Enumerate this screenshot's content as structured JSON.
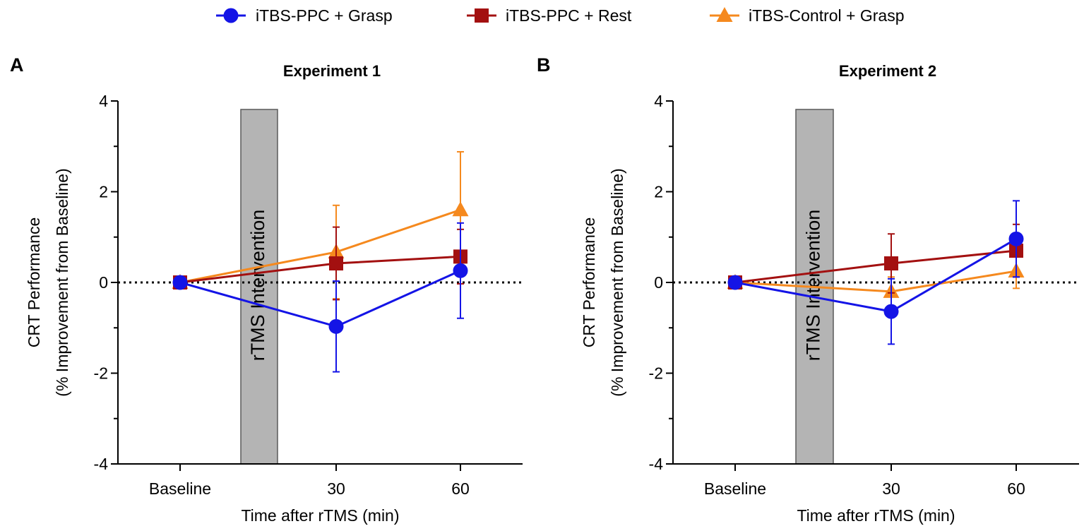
{
  "legend": [
    {
      "label": "iTBS-PPC + Grasp",
      "color": "#1414e6",
      "marker": "circle"
    },
    {
      "label": "iTBS-PPC + Rest",
      "color": "#a31010",
      "marker": "square"
    },
    {
      "label": "iTBS-Control + Grasp",
      "color": "#f5891e",
      "marker": "triangle"
    }
  ],
  "intervention_label": "rTMS Intervention",
  "chart_data": [
    {
      "type": "line",
      "panel": "A",
      "title": "Experiment 1",
      "xlabel": "Time after rTMS (min)",
      "ylabel_line1": "CRT Performance",
      "ylabel_line2": "(% Improvement from Baseline)",
      "ylim": [
        -4,
        4
      ],
      "yticks": [
        -4,
        -2,
        0,
        2,
        4
      ],
      "categories": [
        "Baseline",
        "30",
        "60"
      ],
      "x": [
        0,
        30,
        60
      ],
      "series": [
        {
          "name": "iTBS-PPC + Grasp",
          "values": [
            0,
            -0.97,
            0.26
          ],
          "errors": [
            0,
            1.0,
            1.05
          ]
        },
        {
          "name": "iTBS-PPC + Rest",
          "values": [
            0,
            0.42,
            0.57
          ],
          "errors": [
            0,
            0.8,
            0.6
          ]
        },
        {
          "name": "iTBS-Control + Grasp",
          "values": [
            0,
            0.67,
            1.6
          ],
          "errors": [
            0,
            1.03,
            1.28
          ]
        }
      ]
    },
    {
      "type": "line",
      "panel": "B",
      "title": "Experiment 2",
      "xlabel": "Time after rTMS (min)",
      "ylabel_line1": "CRT Performance",
      "ylabel_line2": "(% Improvement from Baseline)",
      "ylim": [
        -4,
        4
      ],
      "yticks": [
        -4,
        -2,
        0,
        2,
        4
      ],
      "categories": [
        "Baseline",
        "30",
        "60"
      ],
      "x": [
        0,
        30,
        60
      ],
      "series": [
        {
          "name": "iTBS-PPC + Grasp",
          "values": [
            0,
            -0.64,
            0.96
          ],
          "errors": [
            0,
            0.72,
            0.84
          ]
        },
        {
          "name": "iTBS-PPC + Rest",
          "values": [
            0,
            0.42,
            0.7
          ],
          "errors": [
            0,
            0.65,
            0.58
          ]
        },
        {
          "name": "iTBS-Control + Grasp",
          "values": [
            0,
            -0.2,
            0.25
          ],
          "errors": [
            0,
            0.32,
            0.38
          ]
        }
      ]
    }
  ]
}
